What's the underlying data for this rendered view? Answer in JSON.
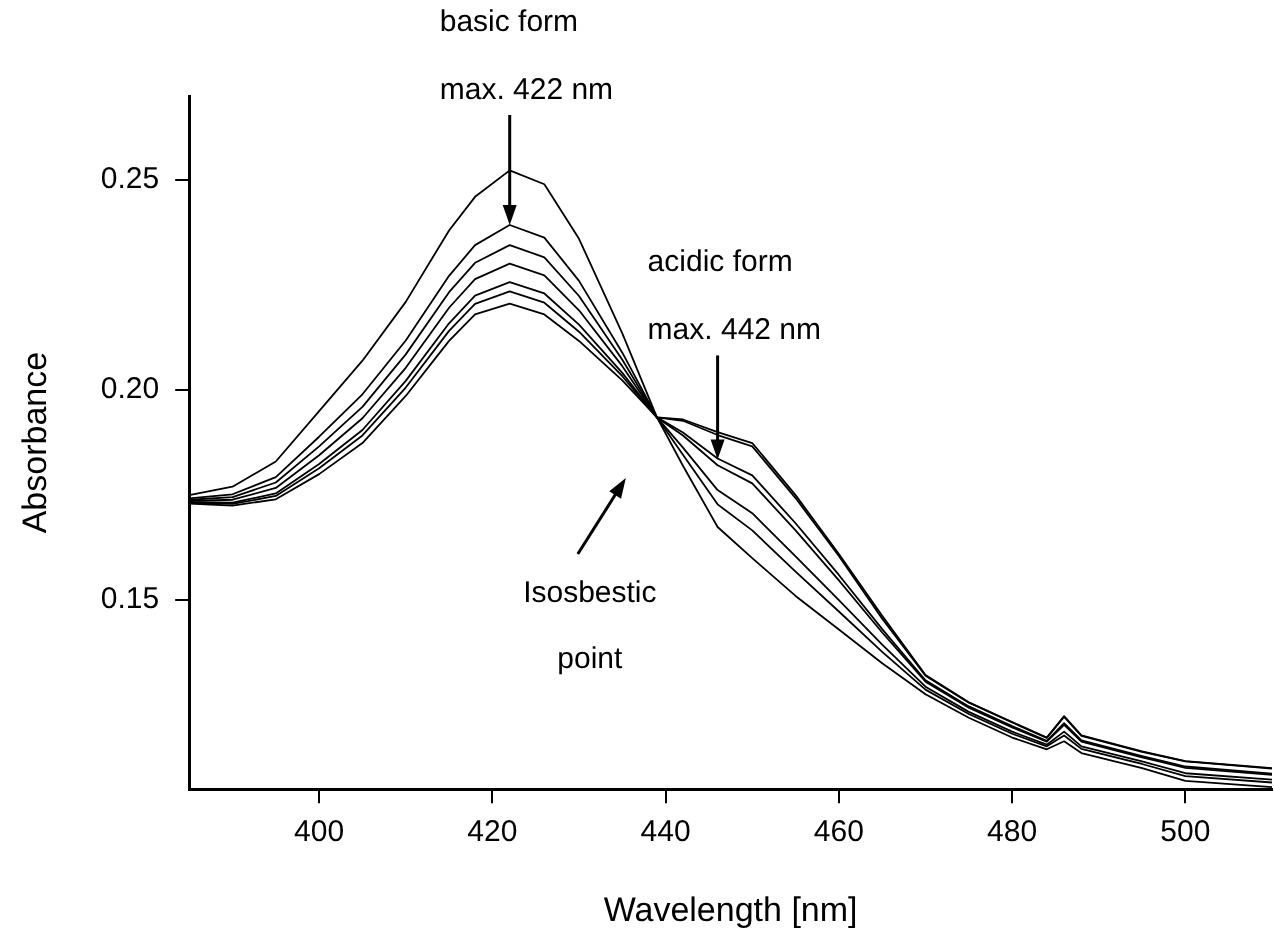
{
  "chart_data": {
    "type": "line",
    "xlabel": "Wavelength [nm]",
    "ylabel": "Absorbance",
    "x": [
      385,
      390,
      395,
      400,
      405,
      410,
      415,
      418,
      422,
      426,
      430,
      435,
      439,
      442,
      446,
      450,
      455,
      460,
      465,
      470,
      475,
      480,
      484,
      486,
      488,
      495,
      500,
      510
    ],
    "series": [
      {
        "color": "#000000",
        "values": [
          0.175,
          0.177,
          0.183,
          0.195,
          0.207,
          0.221,
          0.238,
          0.246,
          0.2523,
          0.249,
          0.236,
          0.2135,
          0.1935,
          0.182,
          0.1674,
          0.16,
          0.151,
          0.143,
          0.135,
          0.1276,
          0.122,
          0.1173,
          0.1145,
          0.1164,
          0.1136,
          0.11,
          0.107,
          0.1055
        ]
      },
      {
        "color": "#000000",
        "values": [
          0.1742,
          0.1752,
          0.1793,
          0.1889,
          0.199,
          0.2118,
          0.2272,
          0.2345,
          0.2393,
          0.2363,
          0.226,
          0.2089,
          0.1935,
          0.1846,
          0.1728,
          0.1666,
          0.1568,
          0.1473,
          0.1377,
          0.1287,
          0.1229,
          0.1182,
          0.1152,
          0.1178,
          0.1146,
          0.111,
          0.1081,
          0.1066
        ]
      },
      {
        "color": "#000000",
        "values": [
          0.1739,
          0.1745,
          0.178,
          0.1866,
          0.196,
          0.2085,
          0.2233,
          0.2303,
          0.2345,
          0.2316,
          0.2224,
          0.2072,
          0.1935,
          0.1863,
          0.1762,
          0.1707,
          0.1604,
          0.15,
          0.1394,
          0.1294,
          0.1234,
          0.1187,
          0.1156,
          0.1187,
          0.1152,
          0.1116,
          0.1088,
          0.1073
        ]
      },
      {
        "color": "#000000",
        "values": [
          0.1736,
          0.1739,
          0.1767,
          0.1845,
          0.1933,
          0.2053,
          0.2196,
          0.2264,
          0.2301,
          0.2273,
          0.219,
          0.2057,
          0.1935,
          0.1892,
          0.1821,
          0.1778,
          0.1666,
          0.1547,
          0.1423,
          0.1306,
          0.1244,
          0.1197,
          0.1163,
          0.1203,
          0.1163,
          0.1126,
          0.1101,
          0.1084
        ]
      },
      {
        "color": "#000000",
        "values": [
          0.1733,
          0.1732,
          0.1754,
          0.1824,
          0.1905,
          0.2022,
          0.2159,
          0.2225,
          0.2257,
          0.223,
          0.2156,
          0.2041,
          0.1935,
          0.1899,
          0.1837,
          0.1797,
          0.1683,
          0.156,
          0.1431,
          0.1309,
          0.1247,
          0.12,
          0.1165,
          0.1207,
          0.1166,
          0.1129,
          0.1104,
          0.1087
        ]
      },
      {
        "color": "#000000",
        "values": [
          0.1732,
          0.1729,
          0.1748,
          0.1814,
          0.1892,
          0.2006,
          0.2141,
          0.2205,
          0.2235,
          0.2208,
          0.2139,
          0.2033,
          0.1935,
          0.1927,
          0.1893,
          0.1866,
          0.1743,
          0.1605,
          0.1456,
          0.132,
          0.1256,
          0.1209,
          0.1172,
          0.1222,
          0.1177,
          0.1139,
          0.1116,
          0.1099
        ]
      },
      {
        "color": "#000000",
        "values": [
          0.173,
          0.1725,
          0.174,
          0.18,
          0.1874,
          0.1986,
          0.2117,
          0.218,
          0.2206,
          0.218,
          0.2117,
          0.2023,
          0.1935,
          0.193,
          0.19,
          0.1874,
          0.175,
          0.161,
          0.1463,
          0.1322,
          0.1257,
          0.121,
          0.1173,
          0.1224,
          0.1178,
          0.114,
          0.1117,
          0.11
        ]
      }
    ],
    "xlim": [
      385,
      510
    ],
    "xticks": [
      400,
      420,
      440,
      460,
      480,
      500
    ],
    "ylim": [
      0.105,
      0.27
    ],
    "yticks": [
      {
        "value": 0.15,
        "label": "0.15"
      },
      {
        "value": 0.2,
        "label": "0.20"
      },
      {
        "value": 0.25,
        "label": "0.25"
      }
    ],
    "annotations": [
      {
        "text": "basic form\nmax. 422 nm",
        "x": 422,
        "y": 0.2393
      },
      {
        "text": "acidic form\nmax. 442 nm",
        "x": 446,
        "y": 0.1835
      },
      "Isosbestic\npoint"
    ],
    "grid": false,
    "legend": false,
    "marker": "none",
    "line_style": "solid"
  }
}
